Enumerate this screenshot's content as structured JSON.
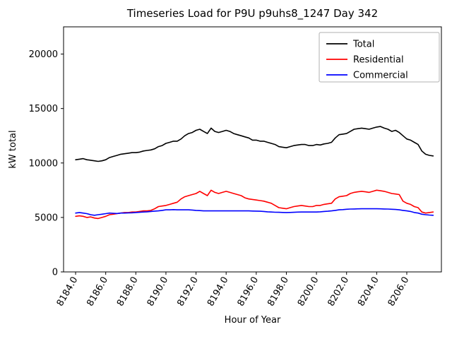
{
  "chart_data": {
    "type": "line",
    "title": "Timeseries Load for P9U p9uhs8_1247  Day 342",
    "xlabel": "Hour of Year",
    "ylabel": "kW total",
    "xlim": [
      8183.2,
      8208.3
    ],
    "ylim": [
      0,
      22500
    ],
    "grid": false,
    "legend_position": "upper right",
    "x_ticks": [
      8184.0,
      8186.0,
      8188.0,
      8190.0,
      8192.0,
      8194.0,
      8196.0,
      8198.0,
      8200.0,
      8202.0,
      8204.0,
      8206.0
    ],
    "x_tick_labels": [
      "8184.0",
      "8186.0",
      "8188.0",
      "8190.0",
      "8192.0",
      "8194.0",
      "8196.0",
      "8198.0",
      "8200.0",
      "8202.0",
      "8204.0",
      "8206.0"
    ],
    "y_ticks": [
      0,
      5000,
      10000,
      15000,
      20000
    ],
    "y_tick_labels": [
      "0",
      "5000",
      "10000",
      "15000",
      "20000"
    ],
    "x": {
      "start": 8184.0,
      "step": 0.25,
      "count": 96
    },
    "series": [
      {
        "name": "Total",
        "color": "#000000",
        "values": [
          10300,
          10350,
          10400,
          10300,
          10250,
          10200,
          10150,
          10200,
          10300,
          10500,
          10600,
          10700,
          10800,
          10850,
          10900,
          10950,
          10950,
          11000,
          11100,
          11150,
          11200,
          11300,
          11500,
          11600,
          11800,
          11900,
          12000,
          12000,
          12200,
          12500,
          12700,
          12800,
          13000,
          13100,
          12900,
          12700,
          13200,
          12900,
          12800,
          12900,
          13000,
          12900,
          12700,
          12600,
          12500,
          12400,
          12300,
          12100,
          12100,
          12000,
          12000,
          11900,
          11800,
          11700,
          11500,
          11450,
          11400,
          11500,
          11600,
          11650,
          11700,
          11700,
          11600,
          11600,
          11700,
          11650,
          11750,
          11800,
          11900,
          12300,
          12600,
          12650,
          12700,
          12900,
          13100,
          13150,
          13200,
          13150,
          13100,
          13200,
          13300,
          13350,
          13200,
          13100,
          12900,
          13000,
          12800,
          12500,
          12200,
          12100,
          11900,
          11700,
          11100,
          10800,
          10700,
          10650
        ]
      },
      {
        "name": "Residential",
        "color": "#ff0000",
        "values": [
          5100,
          5150,
          5100,
          5000,
          5050,
          4950,
          4900,
          5000,
          5100,
          5250,
          5300,
          5350,
          5400,
          5450,
          5450,
          5500,
          5500,
          5550,
          5600,
          5600,
          5650,
          5800,
          6000,
          6050,
          6100,
          6200,
          6300,
          6400,
          6700,
          6900,
          7000,
          7100,
          7200,
          7400,
          7200,
          7000,
          7500,
          7300,
          7200,
          7300,
          7400,
          7300,
          7200,
          7100,
          7000,
          6800,
          6700,
          6650,
          6600,
          6550,
          6500,
          6400,
          6300,
          6100,
          5900,
          5850,
          5800,
          5900,
          6000,
          6050,
          6100,
          6050,
          6000,
          6000,
          6100,
          6100,
          6200,
          6250,
          6300,
          6700,
          6900,
          6950,
          7000,
          7200,
          7300,
          7350,
          7400,
          7350,
          7300,
          7400,
          7500,
          7450,
          7400,
          7300,
          7200,
          7150,
          7100,
          6500,
          6300,
          6200,
          6000,
          5900,
          5500,
          5400,
          5450,
          5500
        ]
      },
      {
        "name": "Commercial",
        "color": "#0000ff",
        "values": [
          5400,
          5450,
          5400,
          5350,
          5250,
          5200,
          5250,
          5300,
          5350,
          5400,
          5380,
          5360,
          5400,
          5400,
          5420,
          5430,
          5450,
          5470,
          5500,
          5520,
          5550,
          5580,
          5600,
          5650,
          5700,
          5700,
          5720,
          5700,
          5700,
          5700,
          5700,
          5680,
          5650,
          5630,
          5600,
          5600,
          5600,
          5600,
          5600,
          5600,
          5600,
          5600,
          5600,
          5600,
          5600,
          5600,
          5600,
          5590,
          5580,
          5570,
          5550,
          5520,
          5500,
          5480,
          5470,
          5460,
          5450,
          5460,
          5470,
          5490,
          5500,
          5500,
          5500,
          5500,
          5500,
          5520,
          5550,
          5570,
          5600,
          5650,
          5700,
          5720,
          5750,
          5770,
          5780,
          5790,
          5800,
          5800,
          5800,
          5800,
          5800,
          5790,
          5780,
          5770,
          5750,
          5730,
          5700,
          5650,
          5600,
          5550,
          5450,
          5400,
          5300,
          5250,
          5220,
          5200
        ]
      }
    ],
    "legend": [
      "Total",
      "Residential",
      "Commercial"
    ]
  }
}
